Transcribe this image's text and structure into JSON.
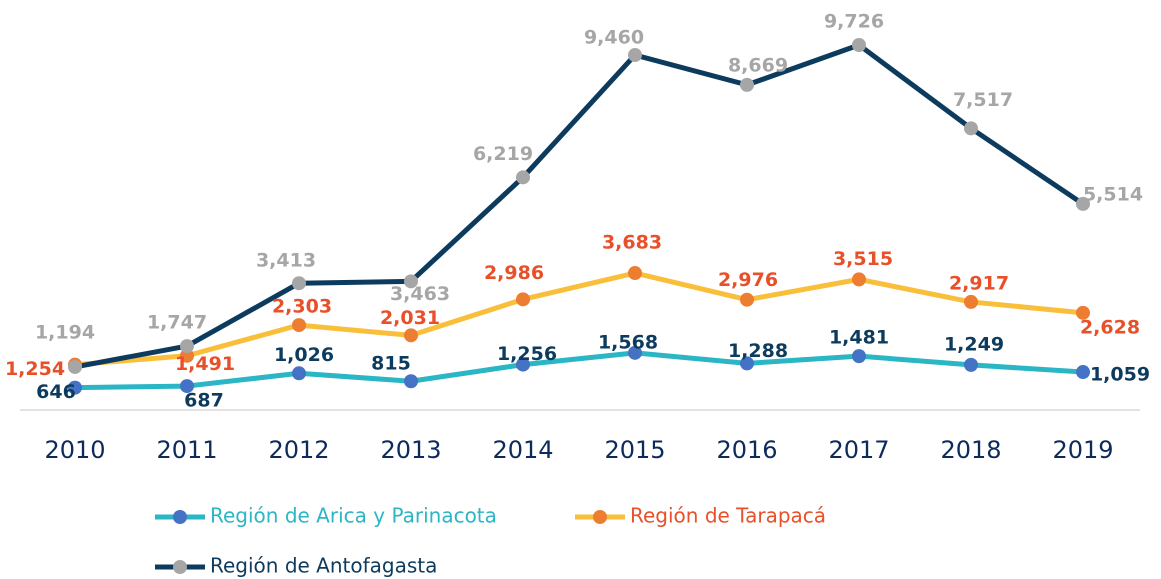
{
  "chart_data": {
    "type": "line",
    "x": [
      "2010",
      "2011",
      "2012",
      "2013",
      "2014",
      "2015",
      "2016",
      "2017",
      "2018",
      "2019"
    ],
    "series": [
      {
        "name": "Región de Arica y Parinacota",
        "color": "#2bb6c6",
        "marker_color": "#4472c4",
        "label_color": "#0d3b5e",
        "values": [
          646,
          687,
          1026,
          815,
          1256,
          1568,
          1288,
          1481,
          1249,
          1059
        ],
        "value_labels": [
          "646",
          "687",
          "1,026",
          "815",
          "1,256",
          "1,568",
          "1,288",
          "1,481",
          "1,249",
          "1,059"
        ]
      },
      {
        "name": "Región de Tarapacá",
        "color": "#f9bf3b",
        "marker_color": "#ed7d31",
        "label_color": "#e8502a",
        "values": [
          1254,
          1491,
          2303,
          2031,
          2986,
          3683,
          2976,
          3515,
          2917,
          2628
        ],
        "value_labels": [
          "1,254",
          "1,491",
          "2,303",
          "2,031",
          "2,986",
          "3,683",
          "2,976",
          "3,515",
          "2,917",
          "2,628"
        ]
      },
      {
        "name": "Región de Antofagasta",
        "color": "#0d3b5e",
        "marker_color": "#a6a6a6",
        "label_color": "#a6a6a6",
        "values": [
          1194,
          1747,
          3413,
          3463,
          6219,
          9460,
          8669,
          9726,
          7517,
          5514
        ],
        "value_labels": [
          "1,194",
          "1,747",
          "3,413",
          "3,463",
          "6,219",
          "9,460",
          "8,669",
          "9,726",
          "7,517",
          "5,514"
        ]
      }
    ]
  }
}
